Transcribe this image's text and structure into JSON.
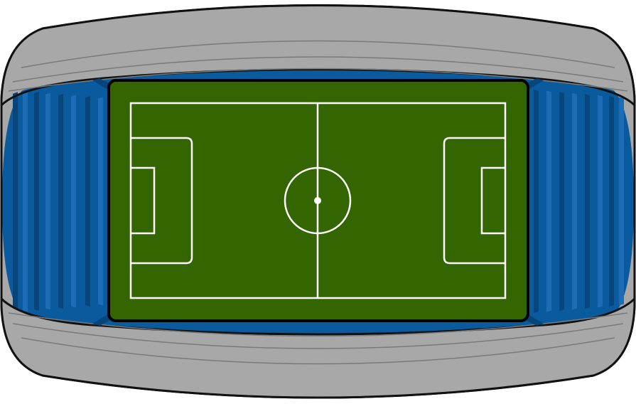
{
  "scene": {
    "subject": "stadium-top-view",
    "colors": {
      "background": "#ffffff",
      "roof_gray": "#a8a8a8",
      "roof_lines": "#7a7a7a",
      "outline": "#111111",
      "stand_blue": "#0a5a9e",
      "stand_blue_dark": "#07457a",
      "stand_blue_light": "#1c6db5",
      "pitch_green": "#336600",
      "pitch_border": "#000000",
      "field_lines": "#ffffff"
    },
    "roof_tiers": 4
  }
}
